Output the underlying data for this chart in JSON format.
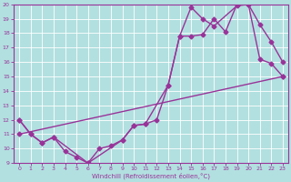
{
  "xlabel": "Windchill (Refroidissement éolien,°C)",
  "xlim": [
    -0.5,
    23.5
  ],
  "ylim": [
    9,
    20
  ],
  "xticks": [
    0,
    1,
    2,
    3,
    4,
    5,
    6,
    7,
    8,
    9,
    10,
    11,
    12,
    13,
    14,
    15,
    16,
    17,
    18,
    19,
    20,
    21,
    22,
    23
  ],
  "yticks": [
    9,
    10,
    11,
    12,
    13,
    14,
    15,
    16,
    17,
    18,
    19,
    20
  ],
  "background_color": "#b2e0e0",
  "line_color": "#993399",
  "line1_x": [
    0,
    1,
    2,
    3,
    4,
    5,
    6,
    7,
    8,
    9,
    10,
    11,
    12,
    13,
    14,
    15,
    16,
    17,
    18,
    19,
    20,
    21,
    22,
    23
  ],
  "line1_y": [
    12,
    11,
    10.4,
    10.8,
    9.8,
    9.4,
    9.0,
    10.0,
    10.2,
    10.6,
    11.6,
    11.7,
    12.0,
    14.4,
    17.8,
    17.8,
    17.9,
    19.0,
    18.1,
    20.0,
    20.0,
    18.6,
    17.4,
    16.0
  ],
  "line2_x": [
    0,
    1,
    2,
    3,
    6,
    9,
    10,
    11,
    13,
    14,
    15,
    16,
    17,
    19,
    20,
    21,
    22,
    23
  ],
  "line2_y": [
    12,
    11,
    10.4,
    10.8,
    9.0,
    10.6,
    11.6,
    11.7,
    14.4,
    17.8,
    19.8,
    19.0,
    18.5,
    19.9,
    20.0,
    16.2,
    15.9,
    15.0
  ],
  "line3_x": [
    0,
    23
  ],
  "line3_y": [
    11.0,
    15.0
  ],
  "marker": "D",
  "markersize": 2.5,
  "linewidth": 1.0
}
